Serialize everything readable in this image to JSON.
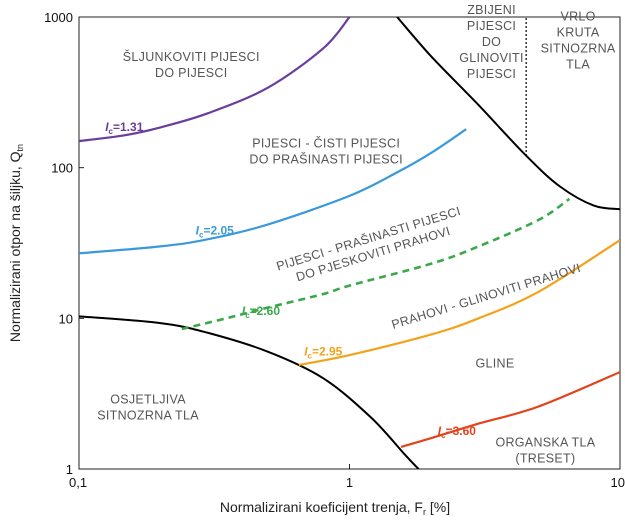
{
  "chart_data": {
    "type": "line",
    "xlabel": "Normalizirani koeficijent trenja, F",
    "xlabel_sub": "r",
    "xlabel_unit": " [%]",
    "ylabel": "Normalizirani otpor na šiljku, Q",
    "ylabel_sub": "tn",
    "x_scale": "log",
    "y_scale": "log",
    "xlim": [
      0.1,
      10
    ],
    "ylim": [
      1,
      1000
    ],
    "x_ticks": [
      {
        "value": 0.1,
        "label": "0,1"
      },
      {
        "value": 1,
        "label": "1"
      },
      {
        "value": 10,
        "label": "10"
      }
    ],
    "y_ticks": [
      {
        "value": 1,
        "label": "1"
      },
      {
        "value": 10,
        "label": "10"
      },
      {
        "value": 100,
        "label": "100"
      },
      {
        "value": 1000,
        "label": "1000"
      }
    ],
    "grid": false,
    "colors": {
      "ic131": "#6a3d9a",
      "ic205": "#3a9ad9",
      "ic260": "#3aa84a",
      "ic295": "#f2a21b",
      "ic360": "#e2431c",
      "boundary": "#000000"
    },
    "series": [
      {
        "name": "I_c=1.31",
        "label_main": "I",
        "label_sub": "c",
        "label_val": "=1.31",
        "color": "#6a3d9a",
        "style": "solid",
        "x": [
          0.1,
          0.15,
          0.2,
          0.3,
          0.5,
          0.8,
          1.0
        ],
        "y": [
          150,
          165,
          185,
          230,
          340,
          620,
          1000
        ]
      },
      {
        "name": "I_c=2.05",
        "label_main": "I",
        "label_sub": "c",
        "label_val": "=2.05",
        "color": "#3a9ad9",
        "style": "solid",
        "x": [
          0.1,
          0.2,
          0.3,
          0.5,
          1.0,
          1.5,
          2.0,
          2.7
        ],
        "y": [
          27,
          30,
          33.5,
          42,
          65,
          93,
          125,
          180
        ]
      },
      {
        "name": "I_c=2.60",
        "label_main": "I",
        "label_sub": "c",
        "label_val": "=2.60",
        "color": "#3aa84a",
        "style": "dashed",
        "x": [
          0.24,
          0.35,
          0.5,
          0.8,
          1.0,
          2.0,
          3.0,
          5.0,
          6.5
        ],
        "y": [
          8.5,
          10,
          11.8,
          14.5,
          16.5,
          23,
          30,
          45,
          62
        ]
      },
      {
        "name": "I_c=2.95",
        "label_main": "I",
        "label_sub": "c",
        "label_val": "=2.95",
        "color": "#f2a21b",
        "style": "solid",
        "x": [
          0.65,
          1.0,
          2.0,
          3.0,
          5.0,
          10.0
        ],
        "y": [
          4.9,
          5.7,
          7.8,
          10,
          15,
          33
        ]
      },
      {
        "name": "I_c=3.60",
        "label_main": "I",
        "label_sub": "c",
        "label_val": "=3.60",
        "color": "#e2431c",
        "style": "solid",
        "x": [
          1.55,
          2.0,
          3.0,
          5.0,
          10.0
        ],
        "y": [
          1.4,
          1.6,
          2.0,
          2.6,
          4.4
        ]
      }
    ],
    "boundaries": [
      {
        "style": "solid",
        "x": [
          0.1,
          0.2,
          0.3,
          0.5,
          0.8,
          1.2,
          1.6,
          1.8
        ],
        "y": [
          10.3,
          9.3,
          8.0,
          6.0,
          4.0,
          2.2,
          1.25,
          1.0
        ]
      },
      {
        "style": "solid",
        "x": [
          1.5,
          2.0,
          3.0,
          4.5,
          6.0,
          8.0,
          10.0
        ],
        "y": [
          1000,
          550,
          260,
          120,
          75,
          56,
          53
        ]
      },
      {
        "style": "dotted",
        "x": [
          4.5,
          4.5
        ],
        "y": [
          120,
          1000
        ]
      }
    ],
    "annotations": [
      {
        "lines": [
          "ŠLJUNKOVITI PIJESCI",
          "DO PIJESCI"
        ],
        "x": 0.26,
        "y": 480,
        "rotate": 0
      },
      {
        "lines": [
          "PIJESCI - ČISTI PIJESCI",
          "DO PRAŠINASTI PIJESCI"
        ],
        "x": 0.82,
        "y": 128,
        "rotate": 0
      },
      {
        "lines": [
          "PIJESCI - PRAŠINASTI PIJESCI",
          "DO PJESKOVITI PRAHOVI"
        ],
        "x": 1.2,
        "y": 30,
        "rotate": -17
      },
      {
        "lines": [
          "PRAHOVI - GLINOVITI PRAHOVI"
        ],
        "x": 3.2,
        "y": 14,
        "rotate": -17
      },
      {
        "lines": [
          "GLINE"
        ],
        "x": 3.45,
        "y": 5.0,
        "rotate": 0
      },
      {
        "lines": [
          "OSJETLJIVA",
          "SITNOZRNA TLA"
        ],
        "x": 0.18,
        "y": 2.55,
        "rotate": 0
      },
      {
        "lines": [
          "ORGANSKA TLA",
          "(TRESET)"
        ],
        "x": 5.3,
        "y": 1.33,
        "rotate": 0
      },
      {
        "lines": [
          "VRLO",
          "ZBIJENI",
          "PIJESCI",
          "DO",
          "GLINOVITI",
          "PIJESCI"
        ],
        "x": 3.35,
        "y": 770,
        "rotate": 0
      },
      {
        "lines": [
          "VRLO",
          "KRUTA",
          "SITNOZRNA",
          "TLA"
        ],
        "x": 7.0,
        "y": 700,
        "rotate": 0
      }
    ],
    "curve_labels": [
      {
        "series": 0,
        "x": 0.125,
        "y": 175
      },
      {
        "series": 1,
        "x": 0.27,
        "y": 36
      },
      {
        "series": 2,
        "x": 0.4,
        "y": 10.5
      },
      {
        "series": 3,
        "x": 0.68,
        "y": 5.65
      },
      {
        "series": 4,
        "x": 2.12,
        "y": 1.68
      }
    ]
  }
}
